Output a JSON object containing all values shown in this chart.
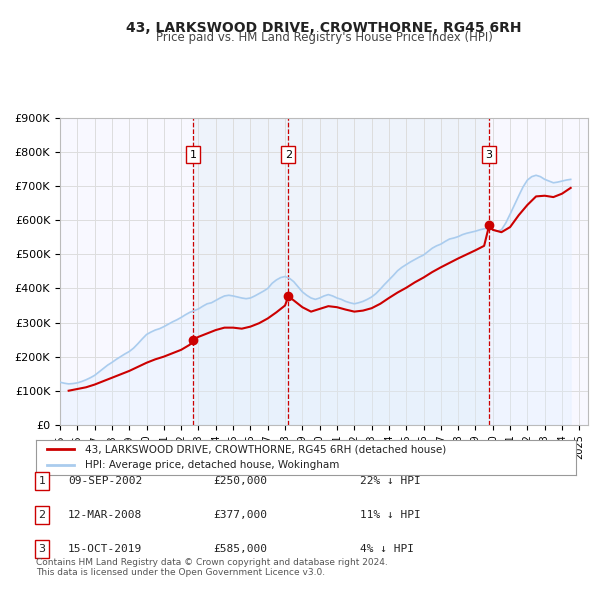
{
  "title": "43, LARKSWOOD DRIVE, CROWTHORNE, RG45 6RH",
  "subtitle": "Price paid vs. HM Land Registry's House Price Index (HPI)",
  "ylabel": "",
  "ylim": [
    0,
    900000
  ],
  "yticks": [
    0,
    100000,
    200000,
    300000,
    400000,
    500000,
    600000,
    700000,
    800000,
    900000
  ],
  "ytick_labels": [
    "£0",
    "£100K",
    "£200K",
    "£300K",
    "£400K",
    "£500K",
    "£600K",
    "£700K",
    "£800K",
    "£900K"
  ],
  "xmin": 1995.0,
  "xmax": 2025.5,
  "sale_color": "#cc0000",
  "hpi_color": "#aaccee",
  "hpi_fill_color": "#ddeeff",
  "vline_color": "#cc0000",
  "grid_color": "#dddddd",
  "background_color": "#ffffff",
  "plot_bg_color": "#f8f8ff",
  "transactions": [
    {
      "num": 1,
      "date_label": "09-SEP-2002",
      "x": 2002.69,
      "price": 250000,
      "pct": "22%",
      "dir": "↓"
    },
    {
      "num": 2,
      "date_label": "12-MAR-2008",
      "x": 2008.19,
      "price": 377000,
      "pct": "11%",
      "dir": "↓"
    },
    {
      "num": 3,
      "date_label": "15-OCT-2019",
      "x": 2019.79,
      "price": 585000,
      "pct": "4%",
      "dir": "↓"
    }
  ],
  "legend_label_red": "43, LARKSWOOD DRIVE, CROWTHORNE, RG45 6RH (detached house)",
  "legend_label_blue": "HPI: Average price, detached house, Wokingham",
  "footnote": "Contains HM Land Registry data © Crown copyright and database right 2024.\nThis data is licensed under the Open Government Licence v3.0.",
  "hpi_data_x": [
    1995.0,
    1995.25,
    1995.5,
    1995.75,
    1996.0,
    1996.25,
    1996.5,
    1996.75,
    1997.0,
    1997.25,
    1997.5,
    1997.75,
    1998.0,
    1998.25,
    1998.5,
    1998.75,
    1999.0,
    1999.25,
    1999.5,
    1999.75,
    2000.0,
    2000.25,
    2000.5,
    2000.75,
    2001.0,
    2001.25,
    2001.5,
    2001.75,
    2002.0,
    2002.25,
    2002.5,
    2002.75,
    2003.0,
    2003.25,
    2003.5,
    2003.75,
    2004.0,
    2004.25,
    2004.5,
    2004.75,
    2005.0,
    2005.25,
    2005.5,
    2005.75,
    2006.0,
    2006.25,
    2006.5,
    2006.75,
    2007.0,
    2007.25,
    2007.5,
    2007.75,
    2008.0,
    2008.25,
    2008.5,
    2008.75,
    2009.0,
    2009.25,
    2009.5,
    2009.75,
    2010.0,
    2010.25,
    2010.5,
    2010.75,
    2011.0,
    2011.25,
    2011.5,
    2011.75,
    2012.0,
    2012.25,
    2012.5,
    2012.75,
    2013.0,
    2013.25,
    2013.5,
    2013.75,
    2014.0,
    2014.25,
    2014.5,
    2014.75,
    2015.0,
    2015.25,
    2015.5,
    2015.75,
    2016.0,
    2016.25,
    2016.5,
    2016.75,
    2017.0,
    2017.25,
    2017.5,
    2017.75,
    2018.0,
    2018.25,
    2018.5,
    2018.75,
    2019.0,
    2019.25,
    2019.5,
    2019.75,
    2020.0,
    2020.25,
    2020.5,
    2020.75,
    2021.0,
    2021.25,
    2021.5,
    2021.75,
    2022.0,
    2022.25,
    2022.5,
    2022.75,
    2023.0,
    2023.25,
    2023.5,
    2023.75,
    2024.0,
    2024.25,
    2024.5
  ],
  "hpi_data_y": [
    125000,
    122000,
    120000,
    121000,
    123000,
    127000,
    132000,
    138000,
    145000,
    155000,
    165000,
    175000,
    183000,
    192000,
    200000,
    208000,
    215000,
    225000,
    238000,
    252000,
    265000,
    272000,
    278000,
    282000,
    288000,
    295000,
    302000,
    308000,
    315000,
    323000,
    330000,
    335000,
    340000,
    348000,
    355000,
    358000,
    365000,
    372000,
    378000,
    380000,
    378000,
    375000,
    372000,
    370000,
    372000,
    378000,
    385000,
    392000,
    400000,
    415000,
    425000,
    432000,
    435000,
    430000,
    420000,
    405000,
    390000,
    380000,
    372000,
    368000,
    372000,
    378000,
    382000,
    378000,
    372000,
    368000,
    362000,
    358000,
    355000,
    358000,
    362000,
    368000,
    375000,
    385000,
    398000,
    412000,
    425000,
    438000,
    452000,
    462000,
    470000,
    478000,
    485000,
    492000,
    498000,
    508000,
    518000,
    525000,
    530000,
    538000,
    545000,
    548000,
    552000,
    558000,
    562000,
    565000,
    568000,
    572000,
    575000,
    578000,
    572000,
    568000,
    572000,
    592000,
    618000,
    645000,
    672000,
    698000,
    718000,
    728000,
    732000,
    728000,
    720000,
    715000,
    710000,
    712000,
    715000,
    718000,
    720000
  ],
  "price_data_x": [
    1995.5,
    1996.0,
    1996.5,
    1997.0,
    1997.5,
    1998.0,
    1998.5,
    1999.0,
    1999.5,
    2000.0,
    2000.5,
    2001.0,
    2001.5,
    2002.0,
    2002.5,
    2002.69,
    2003.0,
    2003.5,
    2004.0,
    2004.5,
    2005.0,
    2005.5,
    2006.0,
    2006.5,
    2007.0,
    2007.5,
    2008.0,
    2008.19,
    2008.5,
    2009.0,
    2009.5,
    2010.0,
    2010.5,
    2011.0,
    2011.5,
    2012.0,
    2012.5,
    2013.0,
    2013.5,
    2014.0,
    2014.5,
    2015.0,
    2015.5,
    2016.0,
    2016.5,
    2017.0,
    2017.5,
    2018.0,
    2018.5,
    2019.0,
    2019.5,
    2019.79,
    2020.0,
    2020.5,
    2021.0,
    2021.5,
    2022.0,
    2022.5,
    2023.0,
    2023.5,
    2024.0,
    2024.5
  ],
  "price_data_y": [
    100000,
    105000,
    110000,
    118000,
    128000,
    138000,
    148000,
    158000,
    170000,
    182000,
    192000,
    200000,
    210000,
    220000,
    235000,
    250000,
    258000,
    268000,
    278000,
    285000,
    285000,
    282000,
    288000,
    298000,
    312000,
    330000,
    350000,
    377000,
    365000,
    345000,
    332000,
    340000,
    348000,
    345000,
    338000,
    332000,
    335000,
    342000,
    355000,
    372000,
    388000,
    402000,
    418000,
    432000,
    448000,
    462000,
    475000,
    488000,
    500000,
    512000,
    525000,
    585000,
    572000,
    565000,
    580000,
    615000,
    645000,
    670000,
    672000,
    668000,
    678000,
    695000
  ]
}
